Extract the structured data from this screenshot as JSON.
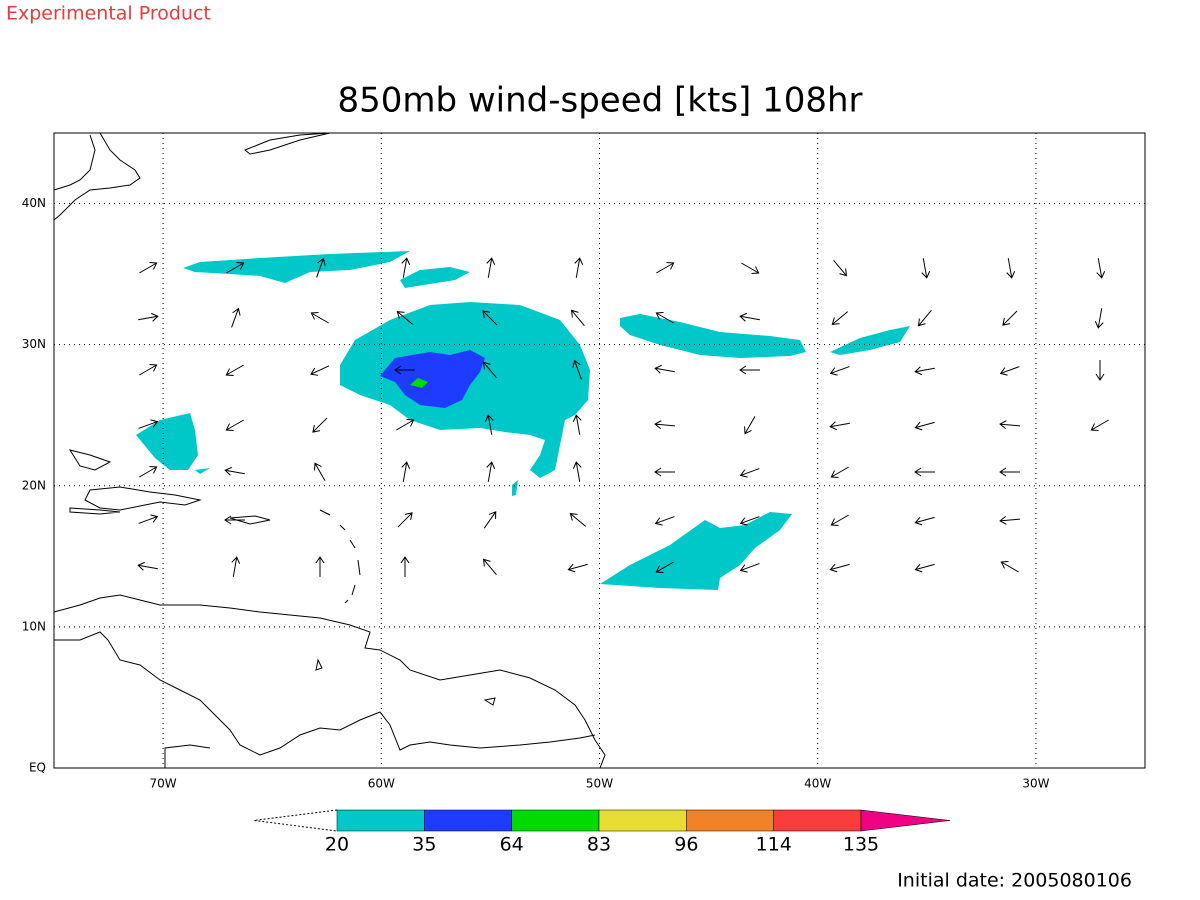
{
  "header": {
    "product": "Experimental Product"
  },
  "map": {
    "title": "850mb wind-speed [kts] 108hr",
    "lonlim": [
      -75,
      -25
    ],
    "latlim": [
      0,
      45
    ],
    "lonticks": [
      {
        "value": -70,
        "label": "70W"
      },
      {
        "value": -60,
        "label": "60W"
      },
      {
        "value": -50,
        "label": "50W"
      },
      {
        "value": -40,
        "label": "40W"
      },
      {
        "value": -30,
        "label": "30W"
      }
    ],
    "latticks": [
      {
        "value": 0,
        "label": "EQ"
      },
      {
        "value": 10,
        "label": "10N"
      },
      {
        "value": 20,
        "label": "20N"
      },
      {
        "value": 30,
        "label": "30N"
      },
      {
        "value": 40,
        "label": "40N"
      }
    ],
    "grid": true,
    "colorbar": {
      "levels": [
        20,
        35,
        64,
        83,
        96,
        114,
        135
      ],
      "colors": [
        "#00c8c8",
        "#1e3cff",
        "#00dc00",
        "#e6dc32",
        "#f08228",
        "#fa3c3c",
        "#f00082"
      ]
    }
  },
  "footer": {
    "initial_date": "Initial date: 2005080106"
  }
}
